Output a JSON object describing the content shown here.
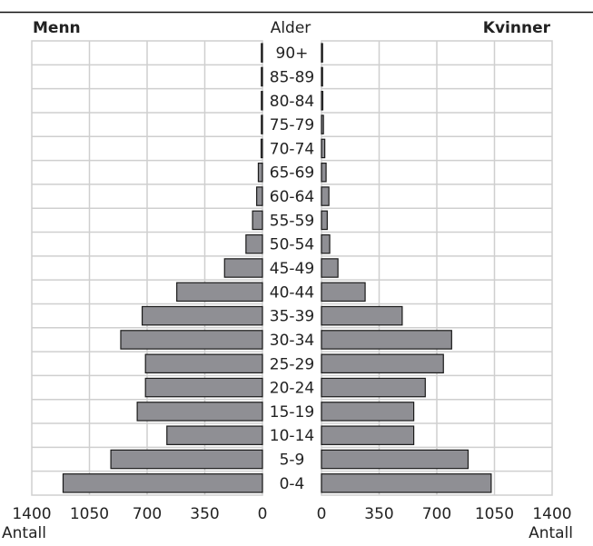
{
  "chart_data": {
    "type": "bar",
    "orientation": "horizontal",
    "subtype": "population-pyramid",
    "left_title": "Menn",
    "center_title": "Alder",
    "right_title": "Kvinner",
    "categories": [
      "0-4",
      "5-9",
      "10-14",
      "15-19",
      "20-24",
      "25-29",
      "30-34",
      "35-39",
      "40-44",
      "45-49",
      "50-54",
      "55-59",
      "60-64",
      "65-69",
      "70-74",
      "75-79",
      "80-84",
      "85-89",
      "90+"
    ],
    "series": [
      {
        "name": "Menn",
        "values": [
          1210,
          920,
          580,
          760,
          710,
          710,
          860,
          730,
          520,
          230,
          100,
          60,
          35,
          25,
          8,
          5,
          3,
          2,
          2
        ]
      },
      {
        "name": "Kvinner",
        "values": [
          1030,
          890,
          560,
          560,
          630,
          740,
          790,
          490,
          265,
          100,
          50,
          35,
          45,
          28,
          20,
          12,
          8,
          5,
          4
        ]
      }
    ],
    "xlim": [
      0,
      1400
    ],
    "left_ticks": [
      "1400",
      "1050",
      "700",
      "350",
      "0"
    ],
    "right_ticks": [
      "0",
      "350",
      "700",
      "1050",
      "1400"
    ],
    "left_axis_label": "Antall",
    "right_axis_label": "Antall",
    "grid": true,
    "bar_color": "#8f8f94",
    "bar_edge_color": "#1a1a1a",
    "grid_color": "#cfcfcf"
  }
}
